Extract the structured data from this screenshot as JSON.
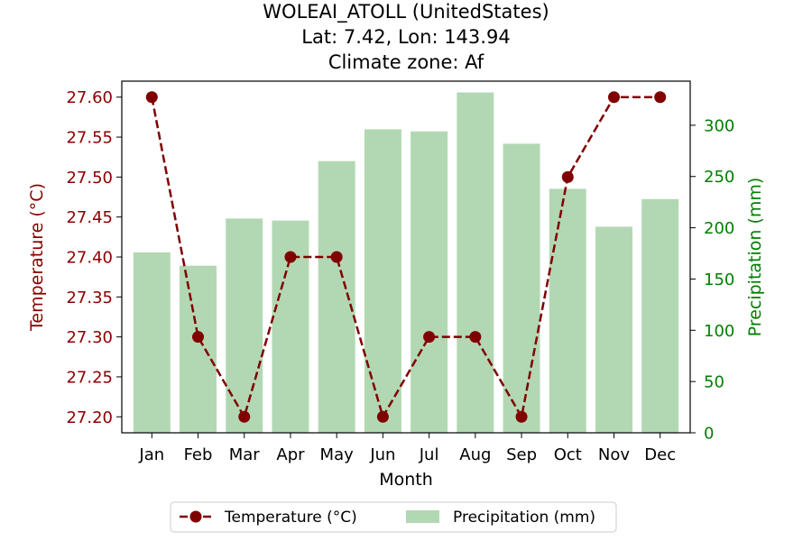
{
  "chart_data": {
    "type": "bar+line",
    "title_lines": [
      "WOLEAI_ATOLL (UnitedStates)",
      "Lat: 7.42, Lon: 143.94",
      "Climate zone: Af"
    ],
    "xlabel": "Month",
    "ylabel_left": "Temperature (°C)",
    "ylabel_right": "Precipitation (mm)",
    "categories": [
      "Jan",
      "Feb",
      "Mar",
      "Apr",
      "May",
      "Jun",
      "Jul",
      "Aug",
      "Sep",
      "Oct",
      "Nov",
      "Dec"
    ],
    "ylim_left": [
      27.18,
      27.62
    ],
    "yticks_left": [
      "27.20",
      "27.25",
      "27.30",
      "27.35",
      "27.40",
      "27.45",
      "27.50",
      "27.55",
      "27.60"
    ],
    "ylim_right": [
      0,
      343
    ],
    "yticks_right": [
      "0",
      "50",
      "100",
      "150",
      "200",
      "250",
      "300"
    ],
    "series": [
      {
        "name": "Precipitation (mm)",
        "kind": "bar",
        "axis": "right",
        "color": "#b2d8b3",
        "values": [
          176,
          163,
          209,
          207,
          265,
          296,
          294,
          332,
          282,
          238,
          201,
          228
        ]
      },
      {
        "name": "Temperature (°C)",
        "kind": "line",
        "axis": "left",
        "color": "#800000",
        "line_style": "dashed",
        "marker": "circle",
        "values": [
          27.6,
          27.3,
          27.2,
          27.4,
          27.4,
          27.2,
          27.3,
          27.3,
          27.2,
          27.5,
          27.6,
          27.6
        ]
      }
    ],
    "left_axis_color": "#8b0000",
    "right_axis_color": "#008000",
    "legend_position": "bottom-center",
    "grid": false
  }
}
